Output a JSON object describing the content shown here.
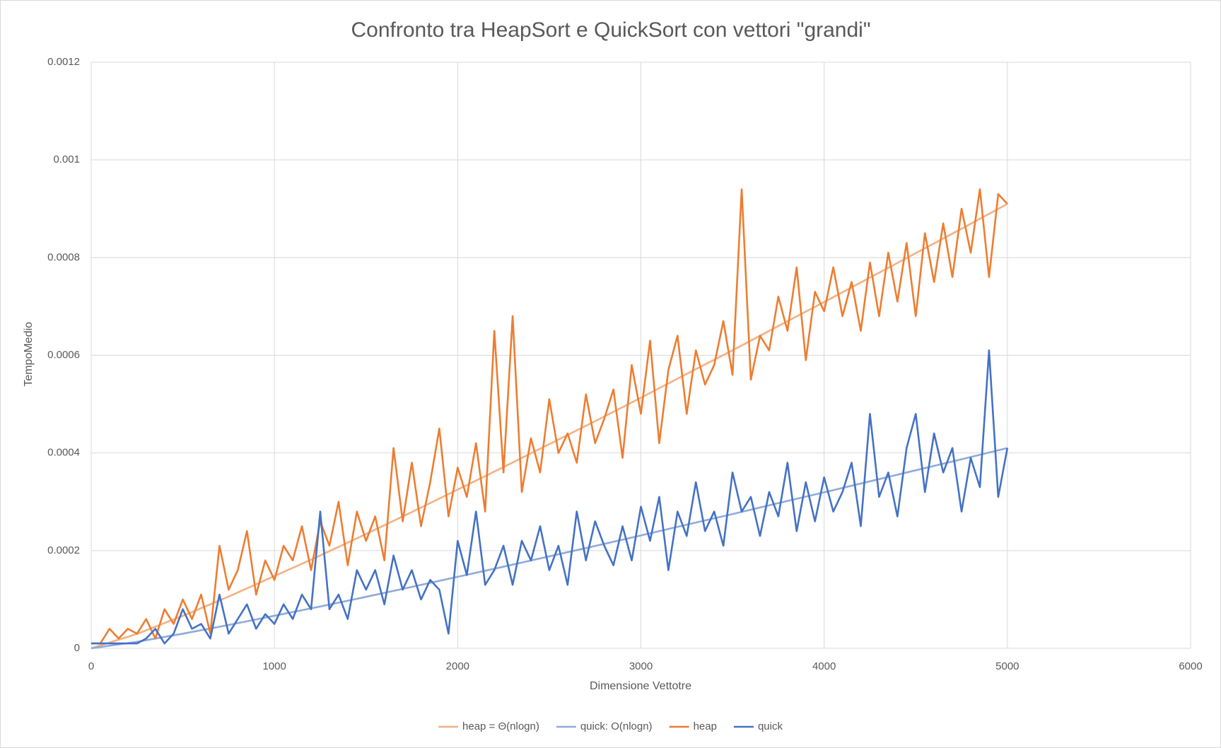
{
  "chart_data": {
    "type": "line",
    "title": "Confronto tra HeapSort e QuickSort con vettori \"grandi\"",
    "x_label": "Dimensione Vettotre",
    "y_label": "TempoMedio",
    "xlim": [
      0,
      6000
    ],
    "xticks": [
      0,
      1000,
      2000,
      3000,
      4000,
      5000,
      6000
    ],
    "ylim": [
      0,
      0.0012
    ],
    "yticks": [
      0,
      0.0002,
      0.0004,
      0.0006,
      0.0008,
      0.001,
      0.0012
    ],
    "grid": true,
    "legend": "bottom",
    "x": [
      0,
      50,
      100,
      150,
      200,
      250,
      300,
      350,
      400,
      450,
      500,
      550,
      600,
      650,
      700,
      750,
      800,
      850,
      900,
      950,
      1000,
      1050,
      1100,
      1150,
      1200,
      1250,
      1300,
      1350,
      1400,
      1450,
      1500,
      1550,
      1600,
      1650,
      1700,
      1750,
      1800,
      1850,
      1900,
      1950,
      2000,
      2050,
      2100,
      2150,
      2200,
      2250,
      2300,
      2350,
      2400,
      2450,
      2500,
      2550,
      2600,
      2650,
      2700,
      2750,
      2800,
      2850,
      2900,
      2950,
      3000,
      3050,
      3100,
      3150,
      3200,
      3250,
      3300,
      3350,
      3400,
      3450,
      3500,
      3550,
      3600,
      3650,
      3700,
      3750,
      3800,
      3850,
      3900,
      3950,
      4000,
      4050,
      4100,
      4150,
      4200,
      4250,
      4300,
      4350,
      4400,
      4450,
      4500,
      4550,
      4600,
      4650,
      4700,
      4750,
      4800,
      4850,
      4900,
      4950,
      5000
    ],
    "series": [
      {
        "name": "heap = Θ(nlogn)",
        "color": "#f4b183",
        "x": [
          0,
          250,
          500,
          750,
          1000,
          1250,
          1500,
          1750,
          2000,
          2250,
          2500,
          2750,
          3000,
          3250,
          3500,
          3750,
          4000,
          4250,
          4500,
          4750,
          5000
        ],
        "values": [
          0,
          2.95e-05,
          6.64e-05,
          0.000106,
          0.000148,
          0.00019,
          0.000234,
          0.000279,
          0.000325,
          0.000371,
          0.000418,
          0.000465,
          0.000513,
          0.000562,
          0.00061,
          0.00066,
          0.000709,
          0.000759,
          0.000809,
          0.000859,
          0.00091
        ]
      },
      {
        "name": "quick: O(nlogn)",
        "color": "#8faadc",
        "x": [
          0,
          250,
          500,
          750,
          1000,
          1250,
          1500,
          1750,
          2000,
          2250,
          2500,
          2750,
          3000,
          3250,
          3500,
          3750,
          4000,
          4250,
          4500,
          4750,
          5000
        ],
        "values": [
          0,
          1.33e-05,
          2.99e-05,
          4.78e-05,
          6.67e-05,
          8.56e-05,
          0.0001054,
          0.0001257,
          0.0001464,
          0.0001671,
          0.0001883,
          0.0002095,
          0.0002311,
          0.0002532,
          0.0002748,
          0.0002973,
          0.0003194,
          0.0003419,
          0.0003645,
          0.000387,
          0.00041
        ]
      },
      {
        "name": "heap",
        "color": "#ed7d31",
        "values": [
          1e-05,
          1e-05,
          4e-05,
          2e-05,
          4e-05,
          3e-05,
          6e-05,
          2e-05,
          8e-05,
          5e-05,
          0.0001,
          6e-05,
          0.00011,
          3e-05,
          0.00021,
          0.00012,
          0.00016,
          0.00024,
          0.00011,
          0.00018,
          0.00014,
          0.00021,
          0.00018,
          0.00025,
          0.00016,
          0.00026,
          0.00021,
          0.0003,
          0.00017,
          0.00028,
          0.00022,
          0.00027,
          0.00018,
          0.00041,
          0.00026,
          0.00038,
          0.00025,
          0.00034,
          0.00045,
          0.00027,
          0.00037,
          0.00031,
          0.00042,
          0.00028,
          0.00065,
          0.00036,
          0.00068,
          0.00032,
          0.00043,
          0.00036,
          0.00051,
          0.0004,
          0.00044,
          0.00038,
          0.00052,
          0.00042,
          0.00047,
          0.00053,
          0.00039,
          0.00058,
          0.00048,
          0.00063,
          0.00042,
          0.00057,
          0.00064,
          0.00048,
          0.00061,
          0.00054,
          0.00058,
          0.00067,
          0.00056,
          0.00094,
          0.00055,
          0.00064,
          0.00061,
          0.00072,
          0.00065,
          0.00078,
          0.00059,
          0.00073,
          0.00069,
          0.00078,
          0.00068,
          0.00075,
          0.00065,
          0.00079,
          0.00068,
          0.00081,
          0.00071,
          0.00083,
          0.00068,
          0.00085,
          0.00075,
          0.00087,
          0.00076,
          0.0009,
          0.00081,
          0.00094,
          0.00076,
          0.00093,
          0.00091
        ]
      },
      {
        "name": "quick",
        "color": "#4472c4",
        "values": [
          1e-05,
          1e-05,
          1e-05,
          1e-05,
          1e-05,
          1e-05,
          2e-05,
          4e-05,
          1e-05,
          3e-05,
          8e-05,
          4e-05,
          5e-05,
          2e-05,
          0.00011,
          3e-05,
          6e-05,
          9e-05,
          4e-05,
          7e-05,
          5e-05,
          9e-05,
          6e-05,
          0.00011,
          8e-05,
          0.00028,
          8e-05,
          0.00011,
          6e-05,
          0.00016,
          0.00012,
          0.00016,
          9e-05,
          0.00019,
          0.00012,
          0.00016,
          0.0001,
          0.00014,
          0.00012,
          3e-05,
          0.00022,
          0.00015,
          0.00028,
          0.00013,
          0.00016,
          0.00021,
          0.00013,
          0.00022,
          0.00018,
          0.00025,
          0.00016,
          0.00021,
          0.00013,
          0.00028,
          0.00018,
          0.00026,
          0.00021,
          0.00017,
          0.00025,
          0.00018,
          0.00029,
          0.00022,
          0.00031,
          0.00016,
          0.00028,
          0.00023,
          0.00034,
          0.00024,
          0.00028,
          0.00021,
          0.00036,
          0.00028,
          0.00031,
          0.00023,
          0.00032,
          0.00027,
          0.00038,
          0.00024,
          0.00034,
          0.00026,
          0.00035,
          0.00028,
          0.00032,
          0.00038,
          0.00025,
          0.00048,
          0.00031,
          0.00036,
          0.00027,
          0.00041,
          0.00048,
          0.00032,
          0.00044,
          0.00036,
          0.00041,
          0.00028,
          0.00039,
          0.00033,
          0.00061,
          0.00031,
          0.00041
        ]
      }
    ]
  }
}
